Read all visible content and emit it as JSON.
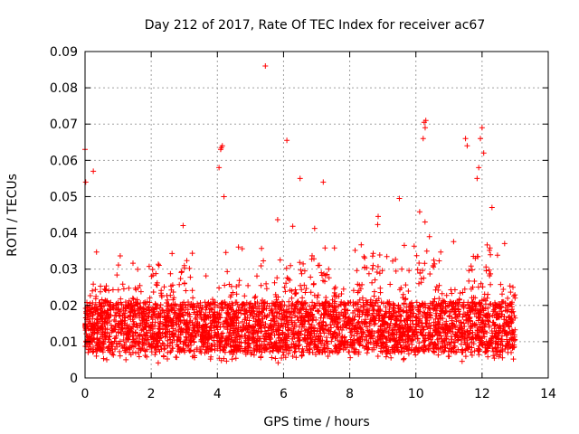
{
  "chart_data": {
    "type": "scatter",
    "title": "Day 212 of 2017, Rate Of TEC Index for receiver ac67",
    "xlabel": "GPS time / hours",
    "ylabel": "ROTI / TECUs",
    "xlim": [
      0,
      14
    ],
    "ylim": [
      0,
      0.09
    ],
    "xticks": [
      "0",
      "2",
      "4",
      "6",
      "8",
      "10",
      "12",
      "14"
    ],
    "yticks": [
      "0",
      "0.01",
      "0.02",
      "0.03",
      "0.04",
      "0.05",
      "0.06",
      "0.07",
      "0.08",
      "0.09"
    ],
    "grid": true,
    "marker": "+",
    "color": "#ff0000",
    "density_note": "dense band of samples between about 0.005 and 0.03 from 0 to 13 hours",
    "notable_points": [
      {
        "x": 0.0,
        "y": 0.063
      },
      {
        "x": 0.02,
        "y": 0.054
      },
      {
        "x": 0.25,
        "y": 0.057
      },
      {
        "x": 4.05,
        "y": 0.058
      },
      {
        "x": 4.1,
        "y": 0.063
      },
      {
        "x": 4.12,
        "y": 0.0635
      },
      {
        "x": 4.15,
        "y": 0.064
      },
      {
        "x": 4.2,
        "y": 0.05
      },
      {
        "x": 5.45,
        "y": 0.086
      },
      {
        "x": 6.1,
        "y": 0.0655
      },
      {
        "x": 6.5,
        "y": 0.055
      },
      {
        "x": 7.2,
        "y": 0.054
      },
      {
        "x": 9.5,
        "y": 0.0495
      },
      {
        "x": 10.25,
        "y": 0.0705
      },
      {
        "x": 10.28,
        "y": 0.069
      },
      {
        "x": 10.3,
        "y": 0.071
      },
      {
        "x": 10.22,
        "y": 0.066
      },
      {
        "x": 11.5,
        "y": 0.066
      },
      {
        "x": 11.55,
        "y": 0.064
      },
      {
        "x": 12.0,
        "y": 0.069
      },
      {
        "x": 12.05,
        "y": 0.062
      },
      {
        "x": 11.95,
        "y": 0.066
      },
      {
        "x": 12.3,
        "y": 0.047
      },
      {
        "x": 11.85,
        "y": 0.055
      },
      {
        "x": 11.9,
        "y": 0.058
      }
    ]
  }
}
